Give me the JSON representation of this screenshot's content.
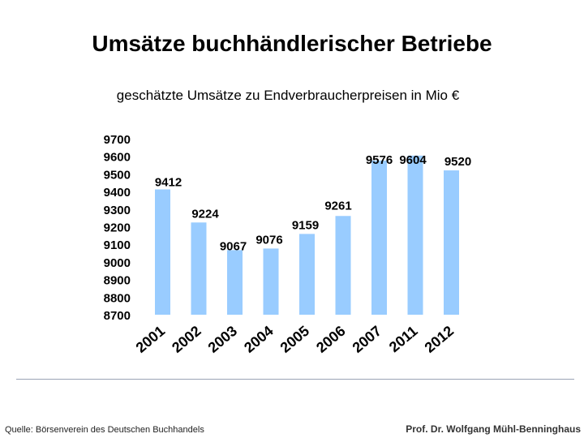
{
  "slide": {
    "title": "Umsätze buchhändlerischer Betriebe",
    "subtitle": "geschätzte Umsätze zu Endverbraucherpreisen in Mio €",
    "source": "Quelle: Börsenverein des Deutschen Buchhandels",
    "author": "Prof. Dr. Wolfgang Mühl-Benninghaus"
  },
  "chart_data": {
    "type": "bar",
    "title": "",
    "xlabel": "",
    "ylabel": "",
    "categories": [
      "2001",
      "2002",
      "2003",
      "2004",
      "2005",
      "2006",
      "2007",
      "2011",
      "2012"
    ],
    "values": [
      9412,
      9224,
      9067,
      9076,
      9159,
      9261,
      9576,
      9604,
      9520
    ],
    "ylim": [
      8700,
      9700
    ],
    "yticks": [
      8700,
      8800,
      8900,
      9000,
      9100,
      9200,
      9300,
      9400,
      9500,
      9600,
      9700
    ],
    "bar_color": "#99ccff",
    "grid": false,
    "legend": "none"
  }
}
